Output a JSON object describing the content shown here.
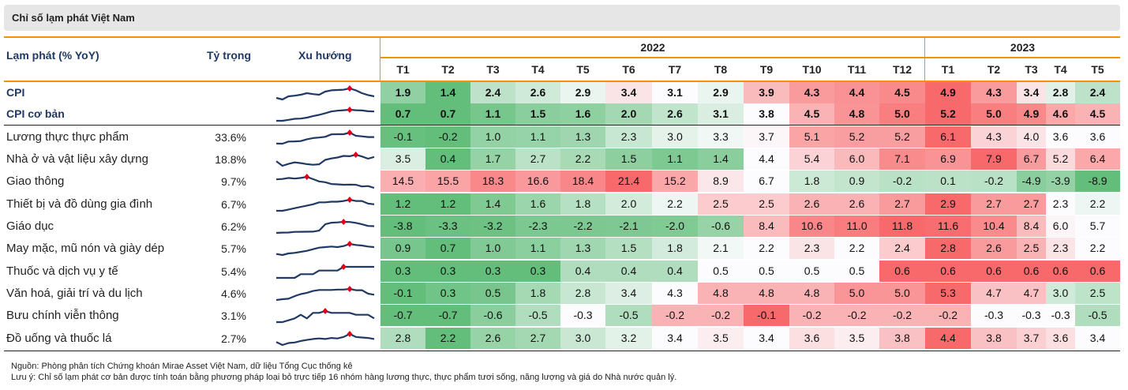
{
  "title": "Chỉ số lạm phát Việt Nam",
  "header": {
    "label_col": "Lạm phát (% YoY)",
    "weight_col": "Tỷ trọng",
    "trend_col": "Xu hướng",
    "years": [
      {
        "label": "2022",
        "span": 12
      },
      {
        "label": "2023",
        "span": 5
      }
    ],
    "months": [
      "T1",
      "T2",
      "T3",
      "T4",
      "T5",
      "T6",
      "T7",
      "T8",
      "T9",
      "T10",
      "T11",
      "T12",
      "T1",
      "T2",
      "T3",
      "T4",
      "T5"
    ]
  },
  "colors": {
    "accent": "#f39200",
    "header_text": "#1f3864",
    "sparkline": "#1f3864",
    "sparkline_marker": "#e0001b",
    "scale_low": "#63be7b",
    "scale_mid": "#fcfcff",
    "scale_high": "#f8696b"
  },
  "chart_data": {
    "type": "table",
    "rows": [
      {
        "name": "CPI",
        "weight": "",
        "bold": true,
        "values": [
          1.9,
          1.4,
          2.4,
          2.6,
          2.9,
          3.4,
          3.1,
          2.9,
          3.9,
          4.3,
          4.4,
          4.5,
          4.9,
          4.3,
          3.4,
          2.8,
          2.4
        ]
      },
      {
        "name": "CPI cơ bản",
        "weight": "",
        "bold": true,
        "values": [
          0.7,
          0.7,
          1.1,
          1.5,
          1.6,
          2.0,
          2.6,
          3.1,
          3.8,
          4.5,
          4.8,
          5.0,
          5.2,
          5.0,
          4.9,
          4.6,
          4.5
        ]
      },
      {
        "name": "Lương thực thực phẩm",
        "weight": "33.6%",
        "bold": false,
        "values": [
          -0.1,
          -0.2,
          1.0,
          1.1,
          1.3,
          2.3,
          3.0,
          3.3,
          3.7,
          5.1,
          5.2,
          5.2,
          6.1,
          4.3,
          4.0,
          3.6,
          3.6
        ]
      },
      {
        "name": "Nhà ở và vật liệu xây dựng",
        "weight": "18.8%",
        "bold": false,
        "values": [
          3.5,
          0.4,
          1.7,
          2.7,
          2.2,
          1.5,
          1.1,
          1.4,
          4.4,
          5.4,
          6.0,
          7.1,
          6.9,
          7.9,
          6.7,
          5.2,
          6.4
        ]
      },
      {
        "name": "Giao thông",
        "weight": "9.7%",
        "bold": false,
        "values": [
          14.5,
          15.5,
          18.3,
          16.6,
          18.4,
          21.4,
          15.2,
          8.9,
          6.7,
          1.8,
          0.9,
          -0.2,
          0.1,
          -0.2,
          -4.9,
          -3.9,
          -8.9
        ]
      },
      {
        "name": "Thiết bị và đồ dùng gia đình",
        "weight": "6.7%",
        "bold": false,
        "values": [
          1.2,
          1.2,
          1.4,
          1.6,
          1.8,
          2.0,
          2.2,
          2.5,
          2.5,
          2.6,
          2.6,
          2.7,
          2.9,
          2.7,
          2.7,
          2.3,
          2.2
        ]
      },
      {
        "name": "Giáo dục",
        "weight": "6.2%",
        "bold": false,
        "values": [
          -3.8,
          -3.3,
          -3.2,
          -2.3,
          -2.2,
          -2.1,
          -2.0,
          -0.6,
          8.4,
          10.6,
          11.0,
          11.8,
          11.6,
          10.4,
          8.4,
          6.0,
          5.7
        ]
      },
      {
        "name": "May mặc, mũ nón và giày dép",
        "weight": "5.7%",
        "bold": false,
        "values": [
          0.9,
          0.7,
          1.0,
          1.1,
          1.3,
          1.5,
          1.8,
          2.1,
          2.2,
          2.3,
          2.2,
          2.4,
          2.8,
          2.6,
          2.5,
          2.3,
          2.2
        ]
      },
      {
        "name": "Thuốc và dịch vụ y tế",
        "weight": "5.4%",
        "bold": false,
        "values": [
          0.3,
          0.3,
          0.3,
          0.3,
          0.4,
          0.4,
          0.4,
          0.5,
          0.5,
          0.5,
          0.5,
          0.6,
          0.6,
          0.6,
          0.6,
          0.6,
          0.6
        ]
      },
      {
        "name": "Văn hoá, giải trí và du lịch",
        "weight": "4.6%",
        "bold": false,
        "values": [
          -0.1,
          0.3,
          0.5,
          1.8,
          2.8,
          3.4,
          4.3,
          4.8,
          4.8,
          4.8,
          5.0,
          5.0,
          5.3,
          4.7,
          4.7,
          3.0,
          2.5
        ]
      },
      {
        "name": "Bưu chính viễn thông",
        "weight": "3.1%",
        "bold": false,
        "values": [
          -0.7,
          -0.7,
          -0.6,
          -0.5,
          -0.3,
          -0.5,
          -0.2,
          -0.2,
          -0.1,
          -0.2,
          -0.2,
          -0.2,
          -0.2,
          -0.3,
          -0.3,
          -0.3,
          -0.5
        ]
      },
      {
        "name": "Đồ uống và thuốc lá",
        "weight": "2.7%",
        "bold": false,
        "values": [
          2.8,
          2.2,
          2.6,
          2.7,
          3.0,
          3.2,
          3.4,
          3.5,
          3.4,
          3.6,
          3.5,
          3.8,
          4.4,
          3.8,
          3.7,
          3.6,
          3.4
        ]
      }
    ]
  },
  "footer": {
    "source": "Nguồn: Phòng phân tích Chứng khoán Mirae Asset Việt Nam, dữ liệu Tổng Cục thống kê",
    "note": "Lưu ý: Chỉ số lạm phát cơ bản được tính toán bằng phương pháp loại bỏ trực tiếp 16 nhóm hàng lương thực, thực phẩm tươi sống, năng lượng và giá do Nhà nước quản lý."
  }
}
